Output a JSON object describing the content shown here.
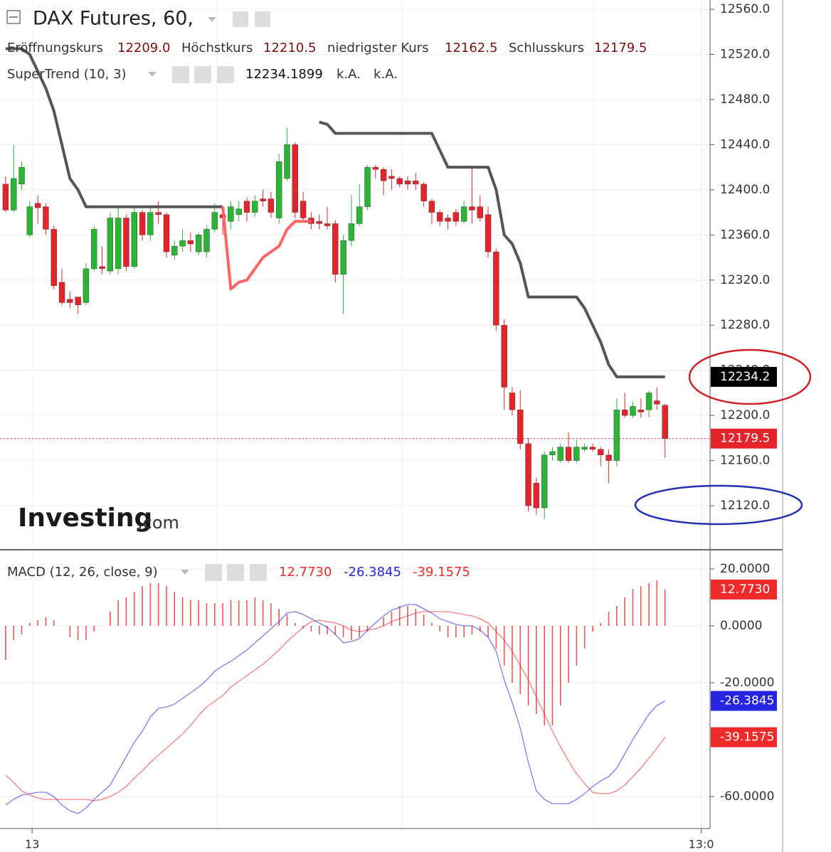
{
  "chart_data": [
    {
      "type": "candlestick",
      "title": "DAX Futures, 60,",
      "readout": [
        {
          "name": "Eröffnungskurs",
          "value": 12209,
          "label": "12209.0"
        },
        {
          "name": "Höchstkurs",
          "value": 12210.5
        },
        {
          "name": "niedrigster Kurs",
          "value": 12162.5
        },
        {
          "name": "Schlusskurs",
          "value": 12179.5
        }
      ],
      "indicator": {
        "name": "SuperTrend (10, 3)",
        "value": 12234.1899,
        "extras": [
          "k.A.",
          "k.A."
        ]
      },
      "open": [
        12405,
        12382,
        12405,
        12360,
        12388,
        12385,
        12365,
        12318,
        12303,
        12305,
        12300,
        12330,
        12332,
        12328,
        12330,
        12375,
        12332,
        12380,
        12360,
        12380,
        12378,
        12342,
        12350,
        12355,
        12345,
        12345,
        12365,
        12378,
        12372,
        12378,
        12390,
        12380,
        12392,
        12392,
        12375,
        12410,
        12440,
        12390,
        12375,
        12372,
        12370,
        12370,
        12325,
        12355,
        12370,
        12385,
        12420,
        12418,
        12412,
        12410,
        12408,
        12408,
        12405,
        12390,
        12380,
        12375,
        12380,
        12372,
        12385,
        12385,
        12378,
        12345,
        12280,
        12220,
        12205,
        12175,
        12140,
        12118,
        12165,
        12160,
        12172,
        12160,
        12170,
        12172,
        12170,
        12165,
        12160,
        12205,
        12200,
        12205,
        12205,
        12213,
        12209
      ],
      "high": [
        12412,
        12440,
        12425,
        12390,
        12395,
        12388,
        12368,
        12330,
        12310,
        12305,
        12335,
        12368,
        12350,
        12380,
        12385,
        12378,
        12385,
        12382,
        12385,
        12390,
        12380,
        12355,
        12365,
        12362,
        12362,
        12368,
        12388,
        12382,
        12390,
        12390,
        12393,
        12395,
        12400,
        12398,
        12432,
        12455,
        12442,
        12398,
        12380,
        12378,
        12385,
        12373,
        12360,
        12395,
        12405,
        12422,
        12422,
        12420,
        12418,
        12412,
        12412,
        12415,
        12407,
        12392,
        12382,
        12378,
        12383,
        12390,
        12420,
        12395,
        12385,
        12348,
        12285,
        12225,
        12222,
        12180,
        12145,
        12168,
        12172,
        12175,
        12185,
        12178,
        12175,
        12175,
        12172,
        12170,
        12215,
        12220,
        12212,
        12215,
        12222,
        12225,
        12210.5
      ],
      "low": [
        12380,
        12380,
        12400,
        12358,
        12370,
        12360,
        12312,
        12298,
        12295,
        12290,
        12298,
        12328,
        12325,
        12325,
        12325,
        12328,
        12330,
        12355,
        12355,
        12370,
        12340,
        12338,
        12345,
        12345,
        12342,
        12340,
        12362,
        12360,
        12365,
        12372,
        12372,
        12376,
        12385,
        12375,
        12370,
        12408,
        12375,
        12372,
        12365,
        12365,
        12365,
        12318,
        12290,
        12350,
        12368,
        12382,
        12410,
        12395,
        12400,
        12402,
        12400,
        12400,
        12385,
        12370,
        12368,
        12365,
        12368,
        12370,
        12370,
        12372,
        12340,
        12275,
        12205,
        12200,
        12170,
        12115,
        12112,
        12108,
        12160,
        12158,
        12158,
        12158,
        12168,
        12168,
        12155,
        12140,
        12155,
        12198,
        12198,
        12198,
        12198,
        12205,
        12162.5
      ],
      "close": [
        12382,
        12410,
        12420,
        12385,
        12384,
        12365,
        12315,
        12300,
        12300,
        12298,
        12330,
        12365,
        12330,
        12375,
        12375,
        12332,
        12380,
        12360,
        12380,
        12378,
        12345,
        12350,
        12355,
        12352,
        12360,
        12365,
        12380,
        12375,
        12385,
        12383,
        12380,
        12390,
        12390,
        12380,
        12425,
        12440,
        12380,
        12375,
        12370,
        12370,
        12368,
        12325,
        12355,
        12370,
        12385,
        12420,
        12418,
        12408,
        12410,
        12405,
        12405,
        12405,
        12390,
        12380,
        12372,
        12372,
        12372,
        12385,
        12382,
        12375,
        12345,
        12280,
        12225,
        12205,
        12175,
        12120,
        12118,
        12165,
        12168,
        12172,
        12160,
        12172,
        12172,
        12170,
        12165,
        12160,
        12205,
        12200,
        12208,
        12203,
        12220,
        12210,
        12179.5
      ],
      "up_color": "#2ab534",
      "down_color": "#e3242b",
      "series": [
        {
          "color": "#555555",
          "values": [
            12525,
            12525,
            12525,
            12520,
            12505,
            12490,
            12470,
            12440,
            12410,
            12400,
            12385,
            12385,
            12385,
            12385,
            12385,
            12385,
            12385,
            12385,
            12385,
            12385,
            12385,
            12385,
            12385,
            12385,
            12385,
            12385,
            12385,
            12385,
            null,
            null,
            null,
            null,
            null,
            null,
            null,
            null,
            null,
            null,
            null,
            12460,
            12458,
            12450,
            12450,
            12450,
            12450,
            12450,
            12450,
            12450,
            12450,
            12450,
            12450,
            12450,
            12450,
            12450,
            12435,
            12420,
            12420,
            12420,
            12420,
            12420,
            12420,
            12400,
            12360,
            12352,
            12335,
            12305,
            12305,
            12305,
            12305,
            12305,
            12305,
            12305,
            12295,
            12280,
            12265,
            12245,
            12234.2,
            12234.2,
            12234.2,
            12234.2,
            12234.2,
            12234.2,
            12234.2
          ]
        },
        {
          "color": "#ff6464",
          "values": [
            null,
            null,
            null,
            null,
            null,
            null,
            null,
            null,
            null,
            null,
            null,
            null,
            null,
            null,
            null,
            null,
            null,
            null,
            null,
            null,
            null,
            null,
            null,
            null,
            null,
            null,
            null,
            12385,
            12312,
            12318,
            12320,
            12330,
            12340,
            12345,
            12350,
            12365,
            12372,
            12372,
            12372,
            null,
            null,
            null,
            null,
            null,
            null,
            null,
            null,
            null,
            null,
            null,
            null,
            null,
            null,
            null,
            null,
            null,
            null,
            null,
            null,
            null,
            null,
            null,
            null,
            null,
            null,
            null,
            null,
            null,
            null,
            null,
            null,
            null,
            null,
            null,
            null,
            null,
            null,
            null,
            null,
            null,
            null,
            null,
            null
          ]
        }
      ],
      "ylim": [
        12081.6,
        12568.2
      ],
      "yticks": [
        {
          "value": 12120,
          "label": "12120.0"
        },
        {
          "value": 12160,
          "label": "12160.0"
        },
        {
          "value": 12200,
          "label": "12200.0"
        },
        {
          "value": 12240,
          "label": "12240.0"
        },
        {
          "value": 12280,
          "label": "12280.0"
        },
        {
          "value": 12320,
          "label": "12320.0"
        },
        {
          "value": 12360,
          "label": "12360.0"
        },
        {
          "value": 12400,
          "label": "12400.0"
        },
        {
          "value": 12440,
          "label": "12440.0"
        },
        {
          "value": 12480,
          "label": "12480.0"
        },
        {
          "value": 12520,
          "label": "12520.0"
        },
        {
          "value": 12560,
          "label": "12560.0"
        }
      ],
      "xlim": [
        -0.7,
        87.6
      ],
      "xticks": [
        {
          "value": 3.3,
          "label": "13"
        },
        {
          "value": 86.5,
          "label": "13:0"
        }
      ],
      "grid": true,
      "watermark": [
        "Investing",
        ".com"
      ]
    },
    {
      "type": "macd",
      "legend": "MACD (12, 26, close, 9)",
      "series": [
        {
          "style": "histogram",
          "color": "#ee2a2a",
          "last_label": "12.7730",
          "values": [
            -12,
            -5,
            -3,
            1,
            2,
            3,
            2,
            0,
            -4,
            -5,
            -5,
            -2,
            0,
            5,
            9,
            10,
            12,
            14,
            15,
            15,
            14,
            12,
            10,
            9,
            9,
            8,
            8,
            8,
            9,
            9,
            9,
            10,
            9,
            8,
            6,
            4,
            1,
            -1,
            -2,
            -3,
            -3,
            -3,
            -4,
            -5,
            -4,
            -2,
            0,
            3,
            5,
            7,
            7,
            6,
            4,
            1,
            -2,
            -4,
            -4,
            -4,
            -3,
            -2,
            -4,
            -8,
            -14,
            -20,
            -24,
            -28,
            -31,
            -35,
            -35,
            -28,
            -20,
            -14,
            -8,
            -2,
            1,
            5,
            7,
            10,
            13,
            14,
            15,
            16,
            12.773
          ]
        },
        {
          "style": "line",
          "color": "#2626e0",
          "last_label": "-26.3845",
          "values": [
            -63,
            -61,
            -59.5,
            -59,
            -58.5,
            -58.5,
            -60,
            -63,
            -65,
            -66,
            -64,
            -61,
            -58.5,
            -56,
            -51,
            -46,
            -41,
            -37,
            -32,
            -29,
            -28.5,
            -27.5,
            -25.5,
            -23.5,
            -21.5,
            -19,
            -16,
            -14,
            -12.5,
            -10.5,
            -8.5,
            -6,
            -3.5,
            -1,
            1.5,
            4.5,
            5,
            4,
            2.5,
            1,
            -0.5,
            -3,
            -6,
            -5.5,
            -4.5,
            -1.5,
            1,
            3.5,
            5.5,
            6.5,
            7.5,
            7.5,
            6,
            4.5,
            2.5,
            1.5,
            0.5,
            0,
            0,
            -1.5,
            -4,
            -9,
            -19,
            -27,
            -36,
            -48,
            -58,
            -61,
            -62.5,
            -62.5,
            -62.5,
            -61,
            -59,
            -56.5,
            -54.5,
            -53,
            -50,
            -45,
            -40,
            -35.5,
            -31,
            -28,
            -26.3845
          ]
        },
        {
          "style": "line",
          "color": "#ee2a2a",
          "last_label": "-39.1575",
          "values": [
            -52.5,
            -55,
            -58,
            -59.5,
            -60.5,
            -61,
            -61,
            -61,
            -61,
            -61,
            -61,
            -61.5,
            -61,
            -60,
            -58.5,
            -56.5,
            -53.5,
            -51,
            -48,
            -45.5,
            -43,
            -40.5,
            -38,
            -35,
            -31.5,
            -28.5,
            -26.5,
            -24.5,
            -21.5,
            -19.5,
            -17.5,
            -15.5,
            -13.5,
            -11,
            -8.5,
            -5.5,
            -3,
            -0.5,
            1.5,
            2,
            1.5,
            1,
            0,
            -1.5,
            -2,
            -1.5,
            -1,
            0,
            1.5,
            2.5,
            3.5,
            4.5,
            5,
            5,
            5,
            5,
            4.5,
            4,
            3.5,
            2.5,
            1,
            -2,
            -5,
            -9,
            -14,
            -19,
            -25,
            -31,
            -37,
            -42.5,
            -47.5,
            -52,
            -55.5,
            -58.5,
            -59,
            -59,
            -58,
            -56,
            -53,
            -50,
            -46.5,
            -43,
            -39.1575
          ]
        }
      ],
      "ylim": [
        -71.25,
        26.25
      ],
      "yticks": [
        {
          "value": 20,
          "label": "20.0000"
        },
        {
          "value": 0,
          "label": "0.0000"
        },
        {
          "value": -20,
          "label": "-20.0000"
        },
        {
          "value": -60,
          "label": "-60.0000"
        }
      ],
      "grid": true
    }
  ]
}
